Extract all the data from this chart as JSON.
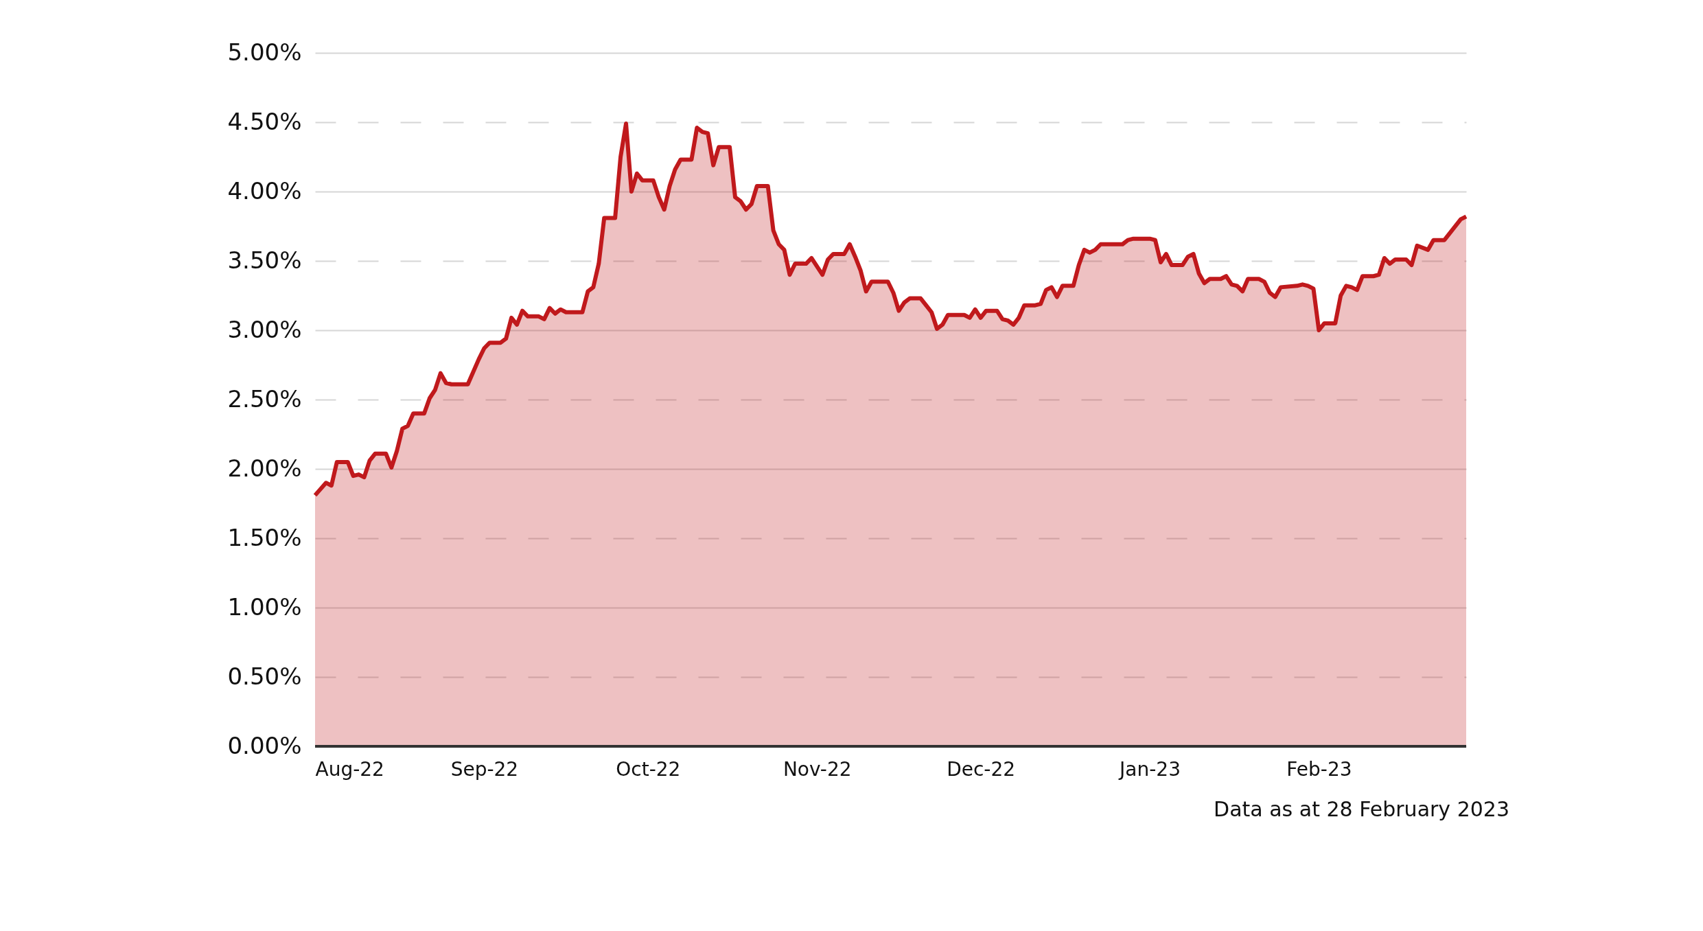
{
  "chart_data": {
    "type": "area",
    "x": [
      "2022-08-01",
      "2022-08-03",
      "2022-08-04",
      "2022-08-05",
      "2022-08-07",
      "2022-08-08",
      "2022-08-09",
      "2022-08-10",
      "2022-08-11",
      "2022-08-12",
      "2022-08-14",
      "2022-08-15",
      "2022-08-16",
      "2022-08-17",
      "2022-08-18",
      "2022-08-19",
      "2022-08-21",
      "2022-08-22",
      "2022-08-23",
      "2022-08-24",
      "2022-08-25",
      "2022-08-26",
      "2022-08-29",
      "2022-08-31",
      "2022-09-01",
      "2022-09-02",
      "2022-09-04",
      "2022-09-05",
      "2022-09-06",
      "2022-09-07",
      "2022-09-08",
      "2022-09-09",
      "2022-09-11",
      "2022-09-12",
      "2022-09-13",
      "2022-09-14",
      "2022-09-15",
      "2022-09-16",
      "2022-09-19",
      "2022-09-20",
      "2022-09-21",
      "2022-09-22",
      "2022-09-23",
      "2022-09-25",
      "2022-09-26",
      "2022-09-27",
      "2022-09-28",
      "2022-09-29",
      "2022-09-30",
      "2022-10-02",
      "2022-10-03",
      "2022-10-04",
      "2022-10-05",
      "2022-10-06",
      "2022-10-07",
      "2022-10-09",
      "2022-10-10",
      "2022-10-11",
      "2022-10-12",
      "2022-10-13",
      "2022-10-14",
      "2022-10-16",
      "2022-10-17",
      "2022-10-18",
      "2022-10-19",
      "2022-10-20",
      "2022-10-21",
      "2022-10-23",
      "2022-10-24",
      "2022-10-25",
      "2022-10-26",
      "2022-10-27",
      "2022-10-28",
      "2022-10-30",
      "2022-10-31",
      "2022-11-02",
      "2022-11-03",
      "2022-11-04",
      "2022-11-06",
      "2022-11-07",
      "2022-11-08",
      "2022-11-09",
      "2022-11-10",
      "2022-11-11",
      "2022-11-14",
      "2022-11-15",
      "2022-11-16",
      "2022-11-17",
      "2022-11-18",
      "2022-11-20",
      "2022-11-21",
      "2022-11-22",
      "2022-11-23",
      "2022-11-24",
      "2022-11-25",
      "2022-11-28",
      "2022-11-29",
      "2022-11-30",
      "2022-12-01",
      "2022-12-02",
      "2022-12-04",
      "2022-12-05",
      "2022-12-06",
      "2022-12-07",
      "2022-12-08",
      "2022-12-09",
      "2022-12-11",
      "2022-12-12",
      "2022-12-13",
      "2022-12-14",
      "2022-12-15",
      "2022-12-16",
      "2022-12-18",
      "2022-12-19",
      "2022-12-20",
      "2022-12-21",
      "2022-12-22",
      "2022-12-23",
      "2022-12-27",
      "2022-12-28",
      "2022-12-29",
      "2023-01-01",
      "2023-01-02",
      "2023-01-03",
      "2023-01-04",
      "2023-01-05",
      "2023-01-07",
      "2023-01-08",
      "2023-01-09",
      "2023-01-10",
      "2023-01-11",
      "2023-01-12",
      "2023-01-14",
      "2023-01-15",
      "2023-01-16",
      "2023-01-17",
      "2023-01-18",
      "2023-01-19",
      "2023-01-21",
      "2023-01-22",
      "2023-01-23",
      "2023-01-24",
      "2023-01-25",
      "2023-01-28",
      "2023-01-29",
      "2023-01-30",
      "2023-01-31",
      "2023-02-01",
      "2023-02-02",
      "2023-02-04",
      "2023-02-05",
      "2023-02-06",
      "2023-02-07",
      "2023-02-08",
      "2023-02-09",
      "2023-02-11",
      "2023-02-12",
      "2023-02-13",
      "2023-02-14",
      "2023-02-15",
      "2023-02-17",
      "2023-02-18",
      "2023-02-19",
      "2023-02-21",
      "2023-02-22",
      "2023-02-24",
      "2023-02-27",
      "2023-02-28"
    ],
    "series": [
      {
        "color": "#c0191c",
        "values": [
          1.81,
          1.9,
          1.88,
          2.05,
          2.05,
          1.95,
          1.96,
          1.94,
          2.06,
          2.11,
          2.11,
          2.01,
          2.13,
          2.29,
          2.31,
          2.4,
          2.4,
          2.51,
          2.57,
          2.69,
          2.62,
          2.61,
          2.61,
          2.79,
          2.87,
          2.91,
          2.91,
          2.94,
          3.09,
          3.04,
          3.14,
          3.1,
          3.1,
          3.08,
          3.16,
          3.12,
          3.15,
          3.13,
          3.13,
          3.28,
          3.31,
          3.48,
          3.81,
          3.81,
          4.25,
          4.49,
          4.0,
          4.13,
          4.08,
          4.08,
          3.96,
          3.87,
          4.04,
          4.16,
          4.23,
          4.23,
          4.46,
          4.43,
          4.42,
          4.19,
          4.32,
          4.32,
          3.96,
          3.93,
          3.87,
          3.91,
          4.04,
          4.04,
          3.72,
          3.62,
          3.58,
          3.4,
          3.48,
          3.48,
          3.52,
          3.4,
          3.51,
          3.55,
          3.55,
          3.62,
          3.53,
          3.43,
          3.28,
          3.35,
          3.35,
          3.27,
          3.14,
          3.2,
          3.23,
          3.23,
          3.18,
          3.13,
          3.01,
          3.04,
          3.11,
          3.11,
          3.09,
          3.15,
          3.09,
          3.14,
          3.14,
          3.08,
          3.07,
          3.04,
          3.09,
          3.18,
          3.18,
          3.19,
          3.29,
          3.31,
          3.24,
          3.32,
          3.32,
          3.47,
          3.58,
          3.56,
          3.58,
          3.62,
          3.62,
          3.65,
          3.66,
          3.66,
          3.65,
          3.49,
          3.55,
          3.47,
          3.47,
          3.53,
          3.55,
          3.41,
          3.34,
          3.37,
          3.37,
          3.39,
          3.33,
          3.32,
          3.28,
          3.37,
          3.37,
          3.35,
          3.27,
          3.24,
          3.31,
          3.32,
          3.33,
          3.32,
          3.3,
          3.0,
          3.05,
          3.05,
          3.25,
          3.32,
          3.31,
          3.29,
          3.39,
          3.39,
          3.4,
          3.52,
          3.48,
          3.51,
          3.51,
          3.47,
          3.61,
          3.58,
          3.65,
          3.65,
          3.8,
          3.82
        ]
      }
    ],
    "xlim": [
      "2022-08-01",
      "2023-02-28"
    ],
    "xticks": [
      {
        "value": "2022-08-01",
        "label": "Aug-22"
      },
      {
        "value": "2022-09-01",
        "label": "Sep-22"
      },
      {
        "value": "2022-10-01",
        "label": "Oct-22"
      },
      {
        "value": "2022-11-01",
        "label": "Nov-22"
      },
      {
        "value": "2022-12-01",
        "label": "Dec-22"
      },
      {
        "value": "2023-01-01",
        "label": "Jan-23"
      },
      {
        "value": "2023-02-01",
        "label": "Feb-23"
      }
    ],
    "ylim": [
      0,
      5
    ],
    "yticks": [
      {
        "value": 0,
        "label": "0.00%"
      },
      {
        "value": 0.5,
        "label": "0.50%"
      },
      {
        "value": 1,
        "label": "1.00%"
      },
      {
        "value": 1.5,
        "label": "1.50%"
      },
      {
        "value": 2,
        "label": "2.00%"
      },
      {
        "value": 2.5,
        "label": "2.50%"
      },
      {
        "value": 3,
        "label": "3.00%"
      },
      {
        "value": 3.5,
        "label": "3.50%"
      },
      {
        "value": 4,
        "label": "4.00%"
      },
      {
        "value": 4.5,
        "label": "4.50%"
      },
      {
        "value": 5,
        "label": "5.00%"
      }
    ],
    "grid": "y",
    "annotations": [
      "Data as at 28 February 2023"
    ]
  }
}
